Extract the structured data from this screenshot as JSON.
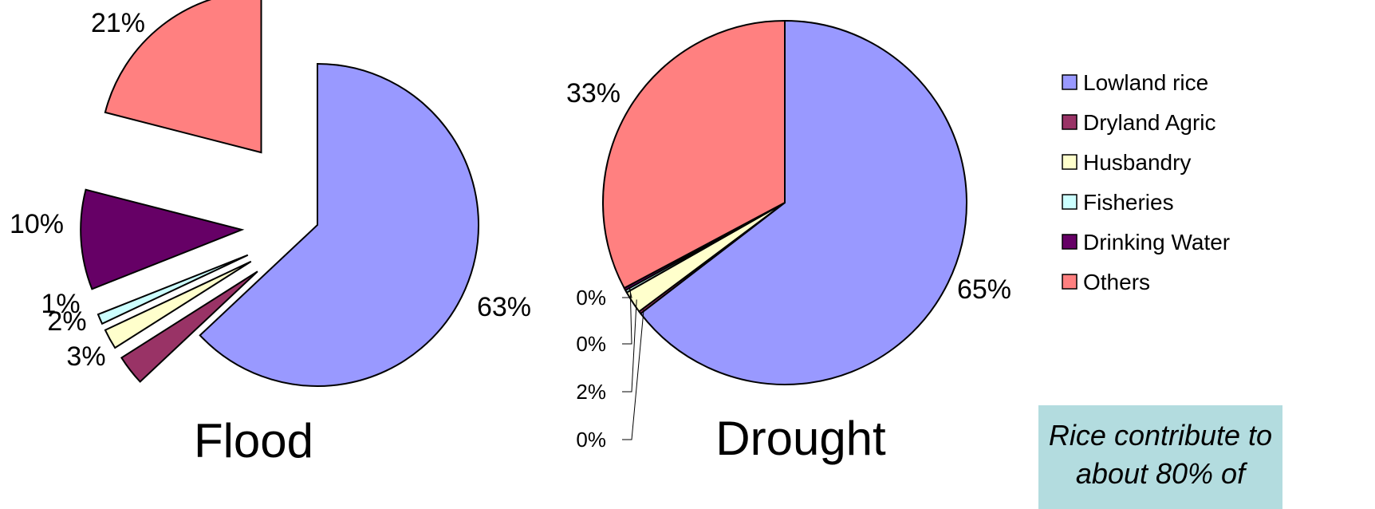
{
  "chart_data": [
    {
      "type": "pie",
      "title": "Flood",
      "categories": [
        "Lowland rice",
        "Dryland Agric",
        "Husbandry",
        "Fisheries",
        "Drinking Water",
        "Others"
      ],
      "values": [
        63,
        3,
        2,
        1,
        10,
        21
      ],
      "labels": [
        "63%",
        "3%",
        "2%",
        "1%",
        "10%",
        "21%"
      ],
      "exploded": true
    },
    {
      "type": "pie",
      "title": "Drought",
      "categories": [
        "Lowland rice",
        "Dryland Agric",
        "Husbandry",
        "Fisheries",
        "Drinking Water",
        "Others"
      ],
      "values": [
        65,
        0,
        2,
        0,
        0,
        33
      ],
      "labels": [
        "65%",
        "0%",
        "2%",
        "0%",
        "0%",
        "33%"
      ],
      "exploded": false
    }
  ],
  "legend": {
    "placement": "right",
    "items": [
      {
        "label": "Lowland rice",
        "color": "#9999ff"
      },
      {
        "label": "Dryland Agric",
        "color": "#993366"
      },
      {
        "label": "Husbandry",
        "color": "#ffffcc"
      },
      {
        "label": "Fisheries",
        "color": "#ccffff"
      },
      {
        "label": "Drinking Water",
        "color": "#660066"
      },
      {
        "label": "Others",
        "color": "#ff8080"
      }
    ]
  },
  "note": {
    "text": "Rice contribute to about 80% of"
  }
}
